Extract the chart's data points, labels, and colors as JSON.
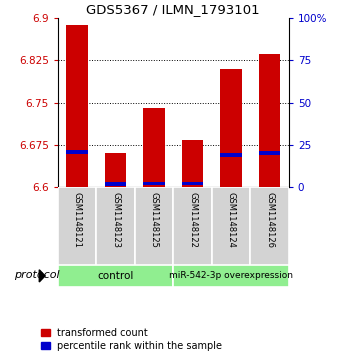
{
  "title": "GDS5367 / ILMN_1793101",
  "samples": [
    "GSM1148121",
    "GSM1148123",
    "GSM1148125",
    "GSM1148122",
    "GSM1148124",
    "GSM1148126"
  ],
  "red_values": [
    6.888,
    6.66,
    6.74,
    6.683,
    6.81,
    6.836
  ],
  "blue_values": [
    6.662,
    6.605,
    6.606,
    6.606,
    6.657,
    6.66
  ],
  "y_min": 6.6,
  "y_max": 6.9,
  "y_ticks_left": [
    6.6,
    6.675,
    6.75,
    6.825,
    6.9
  ],
  "y_ticks_right_vals": [
    0,
    25,
    50,
    75,
    100
  ],
  "y_ticks_right_labels": [
    "0",
    "25",
    "50",
    "75",
    "100%"
  ],
  "bar_color": "#cc0000",
  "blue_color": "#0000cc",
  "group_bg": "#90ee90",
  "sample_bg": "#d3d3d3",
  "bar_width": 0.55,
  "legend_red": "transformed count",
  "legend_blue": "percentile rank within the sample",
  "protocol_label": "protocol"
}
